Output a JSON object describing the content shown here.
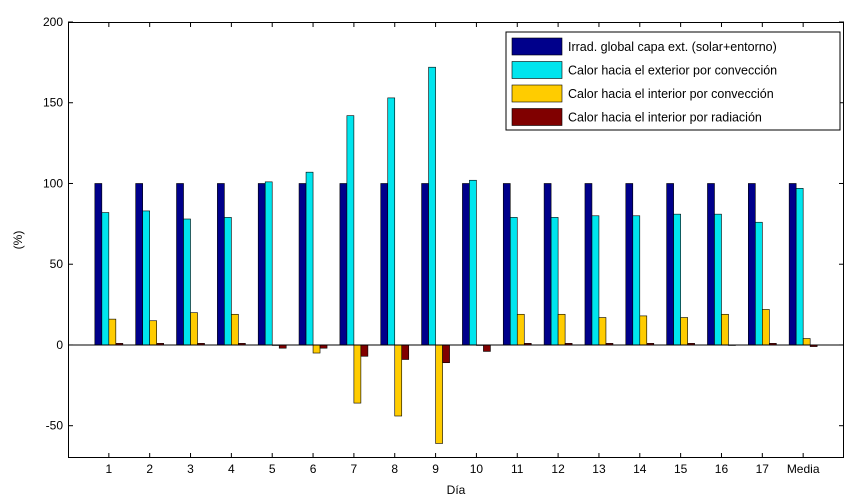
{
  "chart_data": {
    "type": "bar",
    "xlabel": "Día",
    "ylabel": "(%)",
    "ylim": [
      -70,
      200
    ],
    "yticks": [
      -50,
      0,
      50,
      100,
      150,
      200
    ],
    "grid": false,
    "legend_position": "top-right",
    "categories": [
      "1",
      "2",
      "3",
      "4",
      "5",
      "6",
      "7",
      "8",
      "9",
      "10",
      "11",
      "12",
      "13",
      "14",
      "15",
      "16",
      "17",
      "Media"
    ],
    "series": [
      {
        "name": "Irrad. global capa ext. (solar+entorno)",
        "color": "#00008B",
        "values": [
          100,
          100,
          100,
          100,
          100,
          100,
          100,
          100,
          100,
          100,
          100,
          100,
          100,
          100,
          100,
          100,
          100,
          100
        ]
      },
      {
        "name": "Calor hacia el exterior por convección",
        "color": "#00E5EE",
        "values": [
          82,
          83,
          78,
          79,
          101,
          107,
          142,
          153,
          172,
          102,
          79,
          79,
          80,
          80,
          81,
          81,
          76,
          97
        ]
      },
      {
        "name": "Calor hacia el interior por convección",
        "color": "#FFCC00",
        "values": [
          16,
          15,
          20,
          19,
          0,
          -5,
          -36,
          -44,
          -61,
          0,
          19,
          19,
          17,
          18,
          17,
          19,
          22,
          4
        ]
      },
      {
        "name": "Calor hacia el interior por radiación",
        "color": "#800000",
        "values": [
          1,
          1,
          1,
          1,
          -2,
          -2,
          -7,
          -9,
          -11,
          -4,
          1,
          1,
          1,
          1,
          1,
          0,
          1,
          -1
        ]
      }
    ]
  }
}
